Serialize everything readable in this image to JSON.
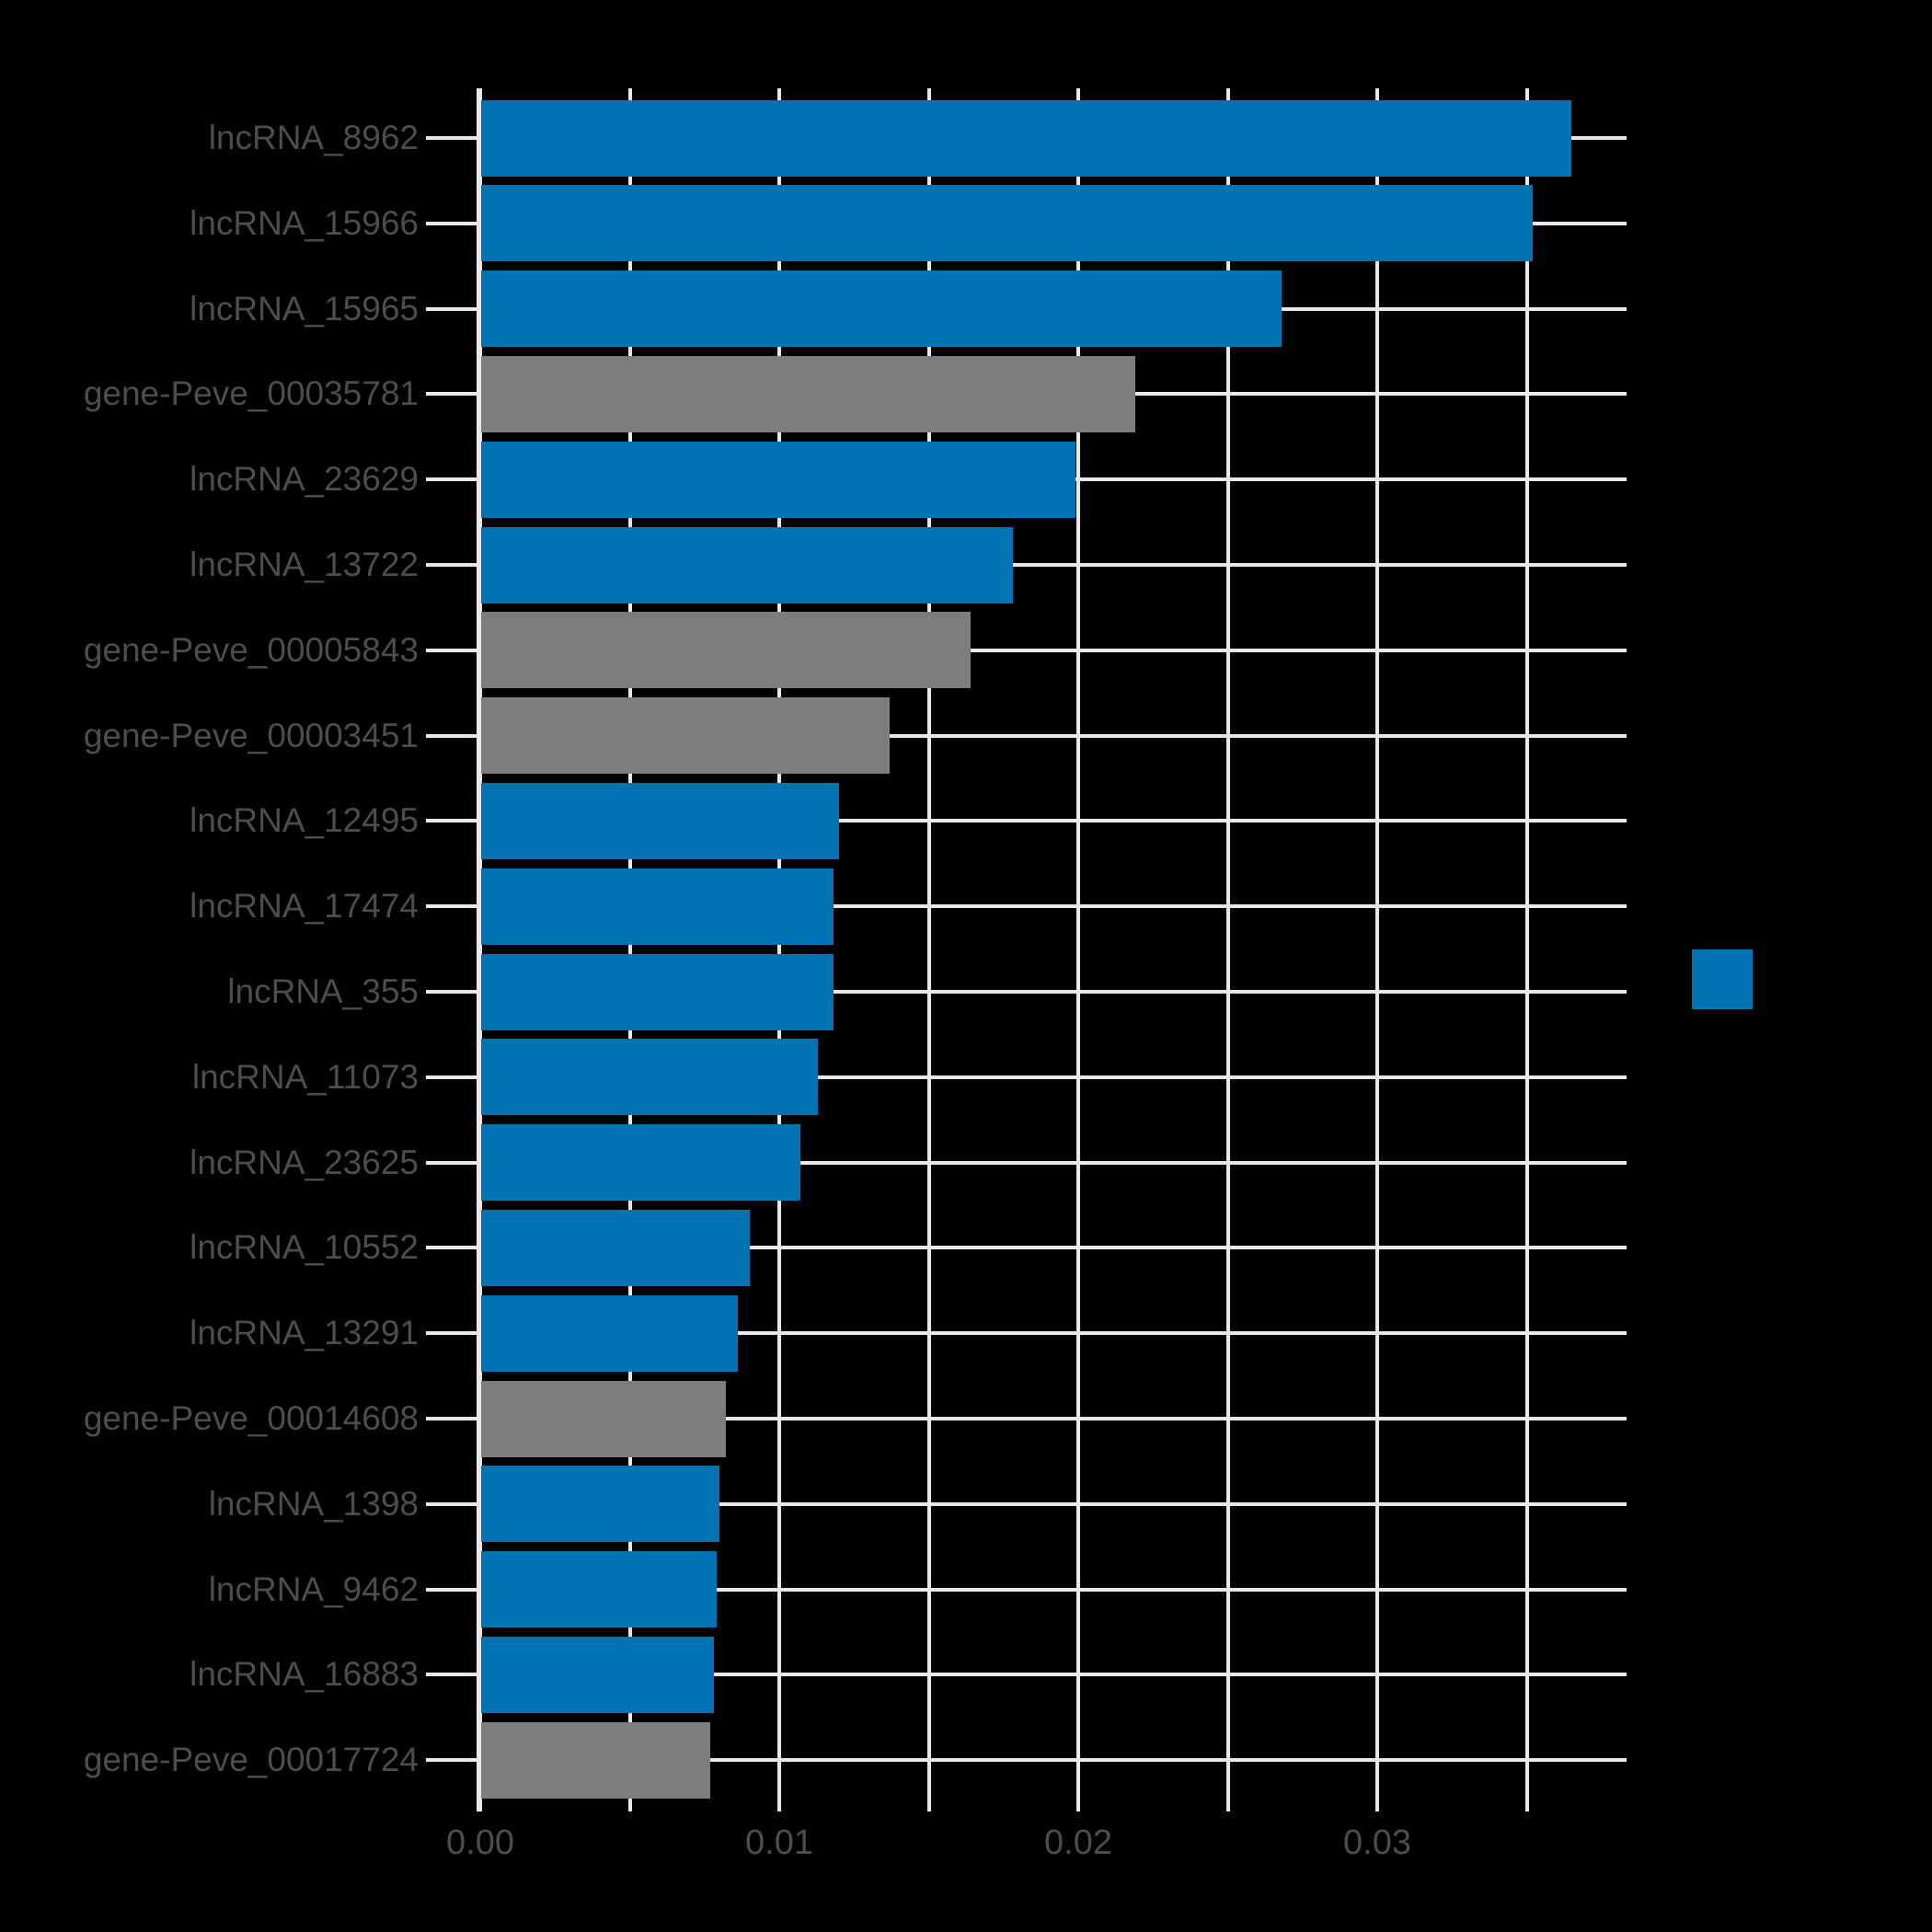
{
  "chart_data": {
    "type": "bar",
    "orientation": "horizontal",
    "title": "",
    "xlabel": "",
    "ylabel": "",
    "grid": true,
    "background": "#000000",
    "text_color": "#4d4d4d",
    "grid_color": "#e8e8e8",
    "xlim": [
      0,
      0.0383
    ],
    "x_major_ticks": [
      0.0,
      0.01,
      0.02,
      0.03
    ],
    "x_major_tick_labels": [
      "0.00",
      "0.01",
      "0.02",
      "0.03"
    ],
    "x_minor_tick_step": 0.005,
    "x_all_tick_values": [
      0.0,
      0.005,
      0.01,
      0.015,
      0.02,
      0.025,
      0.03,
      0.035
    ],
    "categories": [
      "lncRNA_8962",
      "lncRNA_15966",
      "lncRNA_15965",
      "gene-Peve_00035781",
      "lncRNA_23629",
      "lncRNA_13722",
      "gene-Peve_00005843",
      "gene-Peve_00003451",
      "lncRNA_12495",
      "lncRNA_17474",
      "lncRNA_355",
      "lncRNA_11073",
      "lncRNA_23625",
      "lncRNA_10552",
      "lncRNA_13291",
      "gene-Peve_00014608",
      "lncRNA_1398",
      "lncRNA_9462",
      "lncRNA_16883",
      "gene-Peve_00017724"
    ],
    "values": [
      0.0365,
      0.0352,
      0.0268,
      0.0219,
      0.0199,
      0.0178,
      0.0164,
      0.0137,
      0.012,
      0.0118,
      0.0118,
      0.0113,
      0.0107,
      0.009,
      0.0086,
      0.0082,
      0.008,
      0.0079,
      0.0078,
      0.0077
    ],
    "groups": [
      "lncRNA",
      "lncRNA",
      "lncRNA",
      "gene",
      "lncRNA",
      "lncRNA",
      "gene",
      "gene",
      "lncRNA",
      "lncRNA",
      "lncRNA",
      "lncRNA",
      "lncRNA",
      "lncRNA",
      "lncRNA",
      "gene",
      "lncRNA",
      "lncRNA",
      "lncRNA",
      "gene"
    ],
    "group_colors": {
      "lncRNA": "#0173b2",
      "gene": "#7d7d7d"
    },
    "legend": {
      "position": "right",
      "entries": [
        {
          "label": "",
          "color": "#0173b2"
        }
      ]
    }
  },
  "colors": {
    "background": "#000000",
    "bar_blue": "#0173b2",
    "bar_gray": "#7d7d7d",
    "grid": "#e8e8e8",
    "text": "#4d4d4d"
  }
}
